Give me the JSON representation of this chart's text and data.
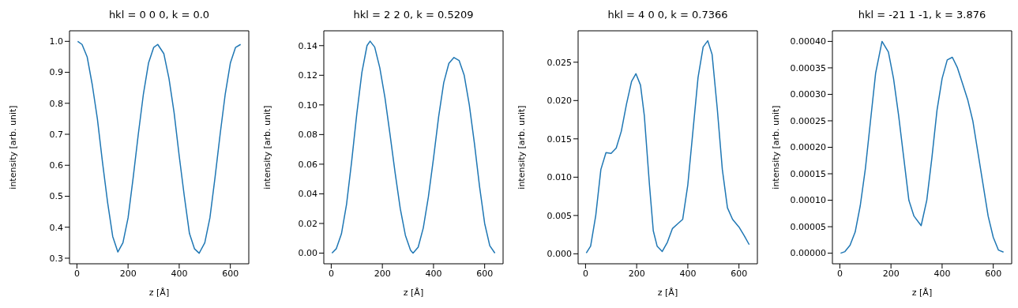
{
  "chart_data": [
    {
      "type": "line",
      "title": "hkl = 0 0 0, k = 0.0",
      "xlabel": "z [Å]",
      "ylabel": "intensity [arb. unit]",
      "xlim": [
        -29,
        672
      ],
      "xticks": [
        0,
        200,
        400,
        600
      ],
      "ylim": [
        0.282,
        1.034
      ],
      "yticks": [
        {
          "value": 0.3,
          "label": "0.3"
        },
        {
          "value": 0.4,
          "label": "0.4"
        },
        {
          "value": 0.5,
          "label": "0.5"
        },
        {
          "value": 0.6,
          "label": "0.6"
        },
        {
          "value": 0.7,
          "label": "0.7"
        },
        {
          "value": 0.8,
          "label": "0.8"
        },
        {
          "value": 0.9,
          "label": "0.9"
        },
        {
          "value": 1.0,
          "label": "1.0"
        }
      ],
      "grid": false,
      "series": [
        {
          "color": "#1f77b4",
          "x": [
            3,
            20,
            40,
            60,
            80,
            100,
            120,
            140,
            160,
            180,
            200,
            220,
            240,
            260,
            280,
            300,
            316,
            340,
            360,
            380,
            400,
            420,
            440,
            460,
            478,
            500,
            520,
            540,
            560,
            580,
            600,
            620,
            640
          ],
          "values": [
            1.0,
            0.99,
            0.95,
            0.86,
            0.75,
            0.61,
            0.48,
            0.37,
            0.32,
            0.35,
            0.43,
            0.56,
            0.7,
            0.83,
            0.93,
            0.98,
            0.99,
            0.96,
            0.88,
            0.77,
            0.63,
            0.5,
            0.38,
            0.33,
            0.316,
            0.35,
            0.43,
            0.56,
            0.7,
            0.83,
            0.93,
            0.98,
            0.99
          ]
        }
      ]
    },
    {
      "type": "line",
      "title": "hkl = 2 2 0, k = 0.5209",
      "xlabel": "z [Å]",
      "ylabel": "intensity [arb. unit]",
      "xlim": [
        -29,
        672
      ],
      "xticks": [
        0,
        200,
        400,
        600
      ],
      "ylim": [
        -0.0072,
        0.15
      ],
      "yticks": [
        {
          "value": 0,
          "label": "0.00"
        },
        {
          "value": 0.02,
          "label": "0.02"
        },
        {
          "value": 0.04,
          "label": "0.04"
        },
        {
          "value": 0.06,
          "label": "0.06"
        },
        {
          "value": 0.08,
          "label": "0.08"
        },
        {
          "value": 0.1,
          "label": "0.10"
        },
        {
          "value": 0.12,
          "label": "0.12"
        },
        {
          "value": 0.14,
          "label": "0.14"
        }
      ],
      "grid": false,
      "series": [
        {
          "color": "#1f77b4",
          "x": [
            3,
            20,
            40,
            60,
            80,
            100,
            120,
            140,
            152,
            170,
            190,
            210,
            230,
            250,
            270,
            290,
            310,
            320,
            340,
            360,
            380,
            400,
            420,
            440,
            460,
            480,
            500,
            520,
            540,
            560,
            580,
            600,
            620,
            640
          ],
          "values": [
            0.0,
            0.003,
            0.013,
            0.033,
            0.062,
            0.094,
            0.122,
            0.14,
            0.143,
            0.139,
            0.125,
            0.105,
            0.08,
            0.054,
            0.03,
            0.012,
            0.002,
            0.0,
            0.004,
            0.017,
            0.038,
            0.064,
            0.092,
            0.115,
            0.128,
            0.132,
            0.13,
            0.12,
            0.1,
            0.074,
            0.045,
            0.02,
            0.005,
            0.0
          ]
        }
      ]
    },
    {
      "type": "line",
      "title": "hkl = 4 0 0, k = 0.7366",
      "xlabel": "z [Å]",
      "ylabel": "intensity [arb. unit]",
      "xlim": [
        -29,
        672
      ],
      "xticks": [
        0,
        200,
        400,
        600
      ],
      "ylim": [
        -0.0013,
        0.0291
      ],
      "yticks": [
        {
          "value": 0,
          "label": "0.000"
        },
        {
          "value": 0.005,
          "label": "0.005"
        },
        {
          "value": 0.01,
          "label": "0.010"
        },
        {
          "value": 0.015,
          "label": "0.015"
        },
        {
          "value": 0.02,
          "label": "0.020"
        },
        {
          "value": 0.025,
          "label": "0.025"
        }
      ],
      "grid": false,
      "series": [
        {
          "color": "#1f77b4",
          "x": [
            3,
            20,
            40,
            60,
            80,
            100,
            120,
            140,
            160,
            180,
            197,
            215,
            230,
            250,
            265,
            280,
            300,
            320,
            340,
            360,
            380,
            400,
            420,
            440,
            460,
            478,
            495,
            515,
            535,
            555,
            575,
            600,
            620,
            640
          ],
          "values": [
            0.0001,
            0.001,
            0.005,
            0.011,
            0.0132,
            0.0131,
            0.0138,
            0.016,
            0.0195,
            0.0225,
            0.0235,
            0.022,
            0.018,
            0.009,
            0.003,
            0.001,
            0.0003,
            0.0015,
            0.0033,
            0.0039,
            0.0045,
            0.009,
            0.016,
            0.023,
            0.027,
            0.0278,
            0.026,
            0.019,
            0.011,
            0.006,
            0.0045,
            0.0035,
            0.0024,
            0.0012
          ]
        }
      ]
    },
    {
      "type": "line",
      "title": "hkl = -21 1 -1, k = 3.876",
      "xlabel": "z [Å]",
      "ylabel": "intensity [arb. unit]",
      "xlim": [
        -29,
        672
      ],
      "xticks": [
        0,
        200,
        400,
        600
      ],
      "ylim": [
        -2e-05,
        0.00042
      ],
      "yticks": [
        {
          "value": 0,
          "label": "0.00000"
        },
        {
          "value": 5e-05,
          "label": "0.00005"
        },
        {
          "value": 0.0001,
          "label": "0.00010"
        },
        {
          "value": 0.00015,
          "label": "0.00015"
        },
        {
          "value": 0.0002,
          "label": "0.00020"
        },
        {
          "value": 0.00025,
          "label": "0.00025"
        },
        {
          "value": 0.0003,
          "label": "0.00030"
        },
        {
          "value": 0.00035,
          "label": "0.00035"
        },
        {
          "value": 0.0004,
          "label": "0.00040"
        }
      ],
      "grid": false,
      "series": [
        {
          "color": "#1f77b4",
          "x": [
            3,
            20,
            40,
            60,
            80,
            100,
            120,
            140,
            165,
            190,
            210,
            230,
            250,
            270,
            290,
            318,
            340,
            360,
            380,
            400,
            420,
            440,
            460,
            480,
            500,
            520,
            540,
            560,
            580,
            600,
            620,
            640
          ],
          "values": [
            0.0,
            3e-06,
            1.5e-05,
            4e-05,
            9e-05,
            0.00016,
            0.00025,
            0.00034,
            0.0004,
            0.00038,
            0.00033,
            0.00026,
            0.00018,
            0.0001,
            7e-05,
            5.2e-05,
            0.0001,
            0.00018,
            0.00027,
            0.00033,
            0.000365,
            0.00037,
            0.00035,
            0.00032,
            0.00029,
            0.00025,
            0.00019,
            0.00013,
            7e-05,
            3e-05,
            6e-06,
            2e-06
          ]
        }
      ]
    }
  ]
}
